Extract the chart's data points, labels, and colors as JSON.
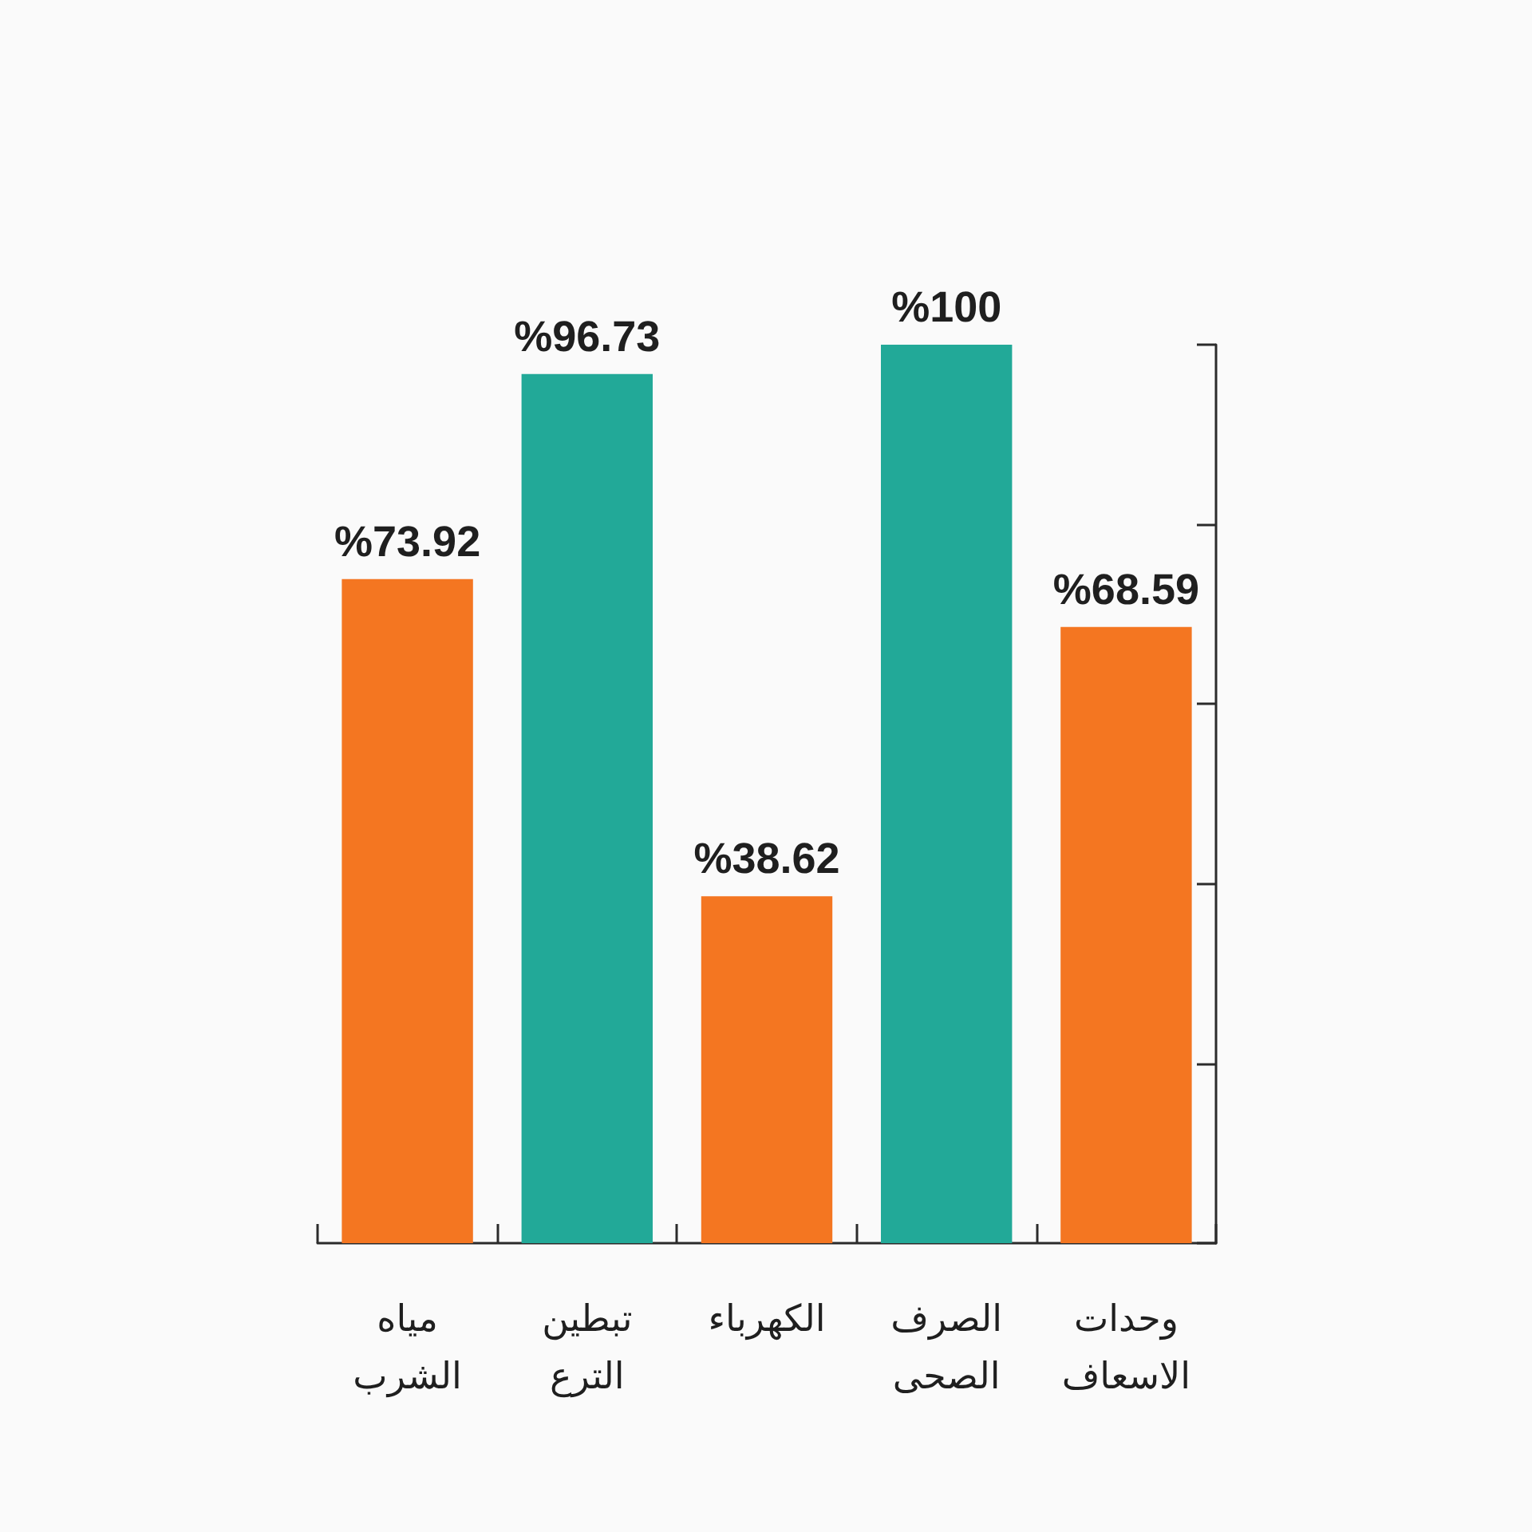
{
  "chart_data": {
    "type": "bar",
    "categories": [
      "مياه الشرب",
      "تبطين الترع",
      "الكهرباء",
      "الصرف الصحى",
      "وحدات الاسعاف"
    ],
    "values": [
      73.92,
      96.73,
      38.62,
      100,
      68.59
    ],
    "colors": [
      "#f47621",
      "#22a998",
      "#f47621",
      "#22a998",
      "#f47621"
    ],
    "value_labels": [
      "%73.92",
      "%96.73",
      "%38.62",
      "%100",
      "%68.59"
    ],
    "ylim": [
      0,
      100
    ],
    "yticks": [
      {
        "value": 0,
        "label": null
      },
      {
        "value": 20,
        "label": null
      },
      {
        "value": 40,
        "label": null
      },
      {
        "value": 60,
        "label": null
      },
      {
        "value": 80,
        "label": null
      },
      {
        "value": 100,
        "label": null
      }
    ],
    "tick_labels": "x",
    "grid": false
  }
}
